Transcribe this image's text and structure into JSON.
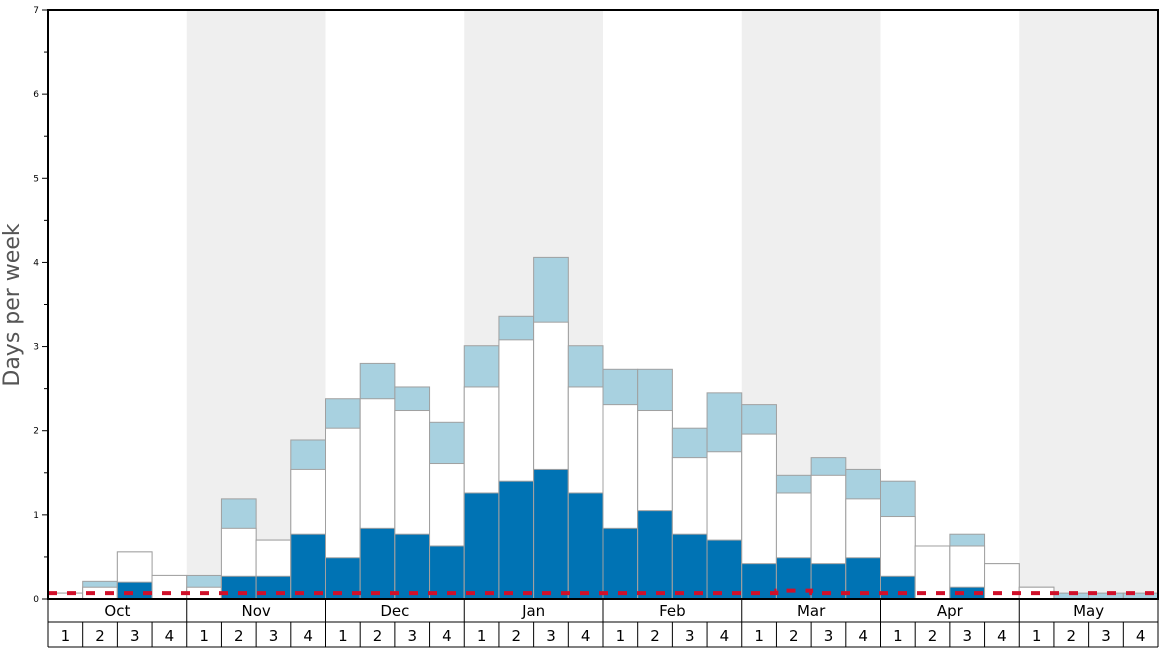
{
  "chart_data": {
    "type": "bar",
    "ylabel": "Days per week",
    "ylim": [
      0,
      7
    ],
    "yticks": [
      "0",
      "1",
      "2",
      "3",
      "4",
      "5",
      "6",
      "7"
    ],
    "months": [
      "Oct",
      "Nov",
      "Dec",
      "Jan",
      "Feb",
      "Mar",
      "Apr",
      "May"
    ],
    "week_labels": [
      "1",
      "2",
      "3",
      "4"
    ],
    "series_colors": {
      "dark": "#0073b4",
      "white": "#ffffff",
      "light": "#a8d1e0",
      "dashed_line": "#d0102a",
      "shade": "#efefef"
    },
    "series": [
      {
        "values": [
          0.0,
          0.0,
          0.2,
          0.0,
          0.0,
          0.27,
          0.27,
          0.77,
          0.49,
          0.84,
          0.77,
          0.63,
          1.26,
          1.4,
          1.54,
          1.26,
          0.84,
          1.05,
          0.77,
          0.7,
          0.42,
          0.49,
          0.42,
          0.49,
          0.27,
          0.0,
          0.14,
          0.0,
          0.0,
          0.0,
          0.0,
          0.0
        ]
      },
      {
        "values": [
          0.07,
          0.14,
          0.56,
          0.28,
          0.14,
          0.84,
          0.7,
          1.54,
          2.03,
          2.38,
          2.24,
          1.61,
          2.52,
          3.08,
          3.29,
          2.52,
          2.31,
          2.24,
          1.68,
          1.75,
          1.96,
          1.26,
          1.47,
          1.19,
          0.98,
          0.63,
          0.63,
          0.42,
          0.14,
          0.0,
          0.0,
          0.0
        ]
      },
      {
        "values": [
          0.07,
          0.21,
          0.56,
          0.28,
          0.28,
          1.19,
          0.7,
          1.89,
          2.38,
          2.8,
          2.52,
          2.1,
          3.01,
          3.36,
          4.06,
          3.01,
          2.73,
          2.73,
          2.03,
          2.45,
          2.31,
          1.47,
          1.68,
          1.54,
          1.4,
          0.63,
          0.77,
          0.42,
          0.14,
          0.07,
          0.07,
          0.07
        ]
      },
      {
        "values": [
          0.07,
          0.07,
          0.07,
          0.07,
          0.07,
          0.07,
          0.07,
          0.07,
          0.07,
          0.07,
          0.07,
          0.07,
          0.07,
          0.07,
          0.07,
          0.07,
          0.07,
          0.07,
          0.07,
          0.07,
          0.07,
          0.1,
          0.07,
          0.07,
          0.07,
          0.07,
          0.07,
          0.07,
          0.07,
          0.07,
          0.07,
          0.07
        ]
      }
    ]
  }
}
